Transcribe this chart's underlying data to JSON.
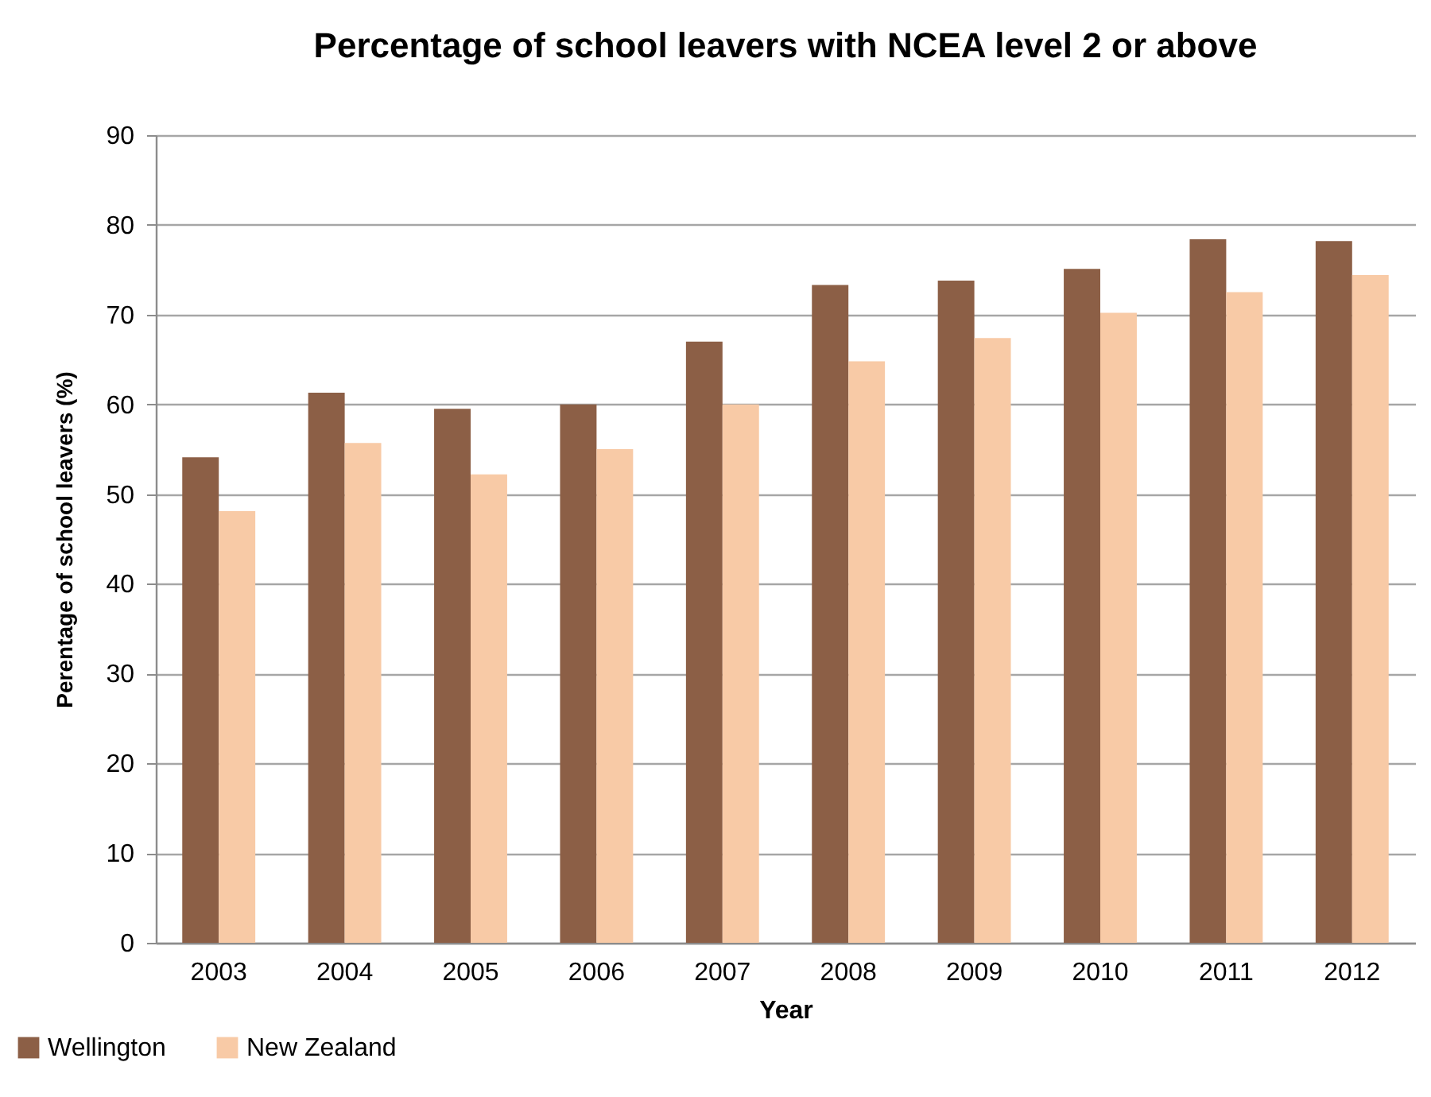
{
  "chart_data": {
    "type": "bar",
    "title": "Percentage of school leavers with NCEA level 2 or above",
    "xlabel": "Year",
    "ylabel": "Perentage of school leavers (%)",
    "categories": [
      "2003",
      "2004",
      "2005",
      "2006",
      "2007",
      "2008",
      "2009",
      "2010",
      "2011",
      "2012"
    ],
    "series": [
      {
        "name": "Wellington",
        "color": "#8c5f46",
        "values": [
          54.1,
          61.3,
          59.5,
          60.0,
          67.0,
          73.3,
          73.8,
          75.1,
          78.4,
          78.2
        ]
      },
      {
        "name": "New Zealand",
        "color": "#f8caa6",
        "values": [
          48.1,
          55.7,
          52.2,
          55.0,
          60.0,
          64.8,
          67.4,
          70.2,
          72.5,
          74.4
        ]
      }
    ],
    "ylim": [
      0,
      90
    ],
    "yticks": [
      0,
      10,
      20,
      30,
      40,
      50,
      60,
      70,
      80,
      90
    ],
    "grid": "y",
    "legend": "bottom left"
  }
}
